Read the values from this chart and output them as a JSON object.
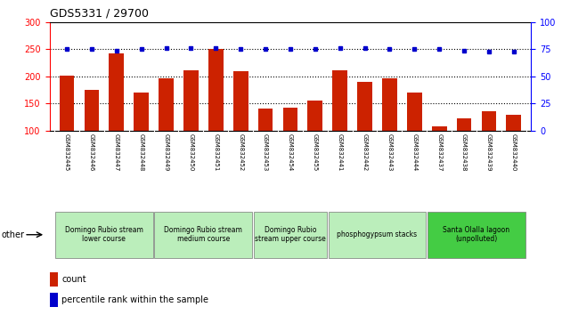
{
  "title": "GDS5331 / 29700",
  "samples": [
    "GSM832445",
    "GSM832446",
    "GSM832447",
    "GSM832448",
    "GSM832449",
    "GSM832450",
    "GSM832451",
    "GSM832452",
    "GSM832453",
    "GSM832454",
    "GSM832455",
    "GSM832441",
    "GSM832442",
    "GSM832443",
    "GSM832444",
    "GSM832437",
    "GSM832438",
    "GSM832439",
    "GSM832440"
  ],
  "counts": [
    201,
    175,
    243,
    171,
    196,
    211,
    251,
    210,
    140,
    142,
    156,
    211,
    190,
    196,
    171,
    108,
    122,
    136,
    129
  ],
  "percentiles": [
    75,
    75,
    74,
    75,
    76,
    76,
    76,
    75,
    75,
    75,
    75,
    76,
    76,
    75,
    75,
    75,
    74,
    73,
    73
  ],
  "groups": [
    {
      "label": "Domingo Rubio stream\nlower course",
      "start": 0,
      "end": 4,
      "color": "#bbeebb"
    },
    {
      "label": "Domingo Rubio stream\nmedium course",
      "start": 4,
      "end": 8,
      "color": "#bbeebb"
    },
    {
      "label": "Domingo Rubio\nstream upper course",
      "start": 8,
      "end": 11,
      "color": "#bbeebb"
    },
    {
      "label": "phosphogypsum stacks",
      "start": 11,
      "end": 15,
      "color": "#bbeebb"
    },
    {
      "label": "Santa Olalla lagoon\n(unpolluted)",
      "start": 15,
      "end": 19,
      "color": "#44cc44"
    }
  ],
  "bar_color": "#cc2200",
  "dot_color": "#0000cc",
  "ylim_left": [
    100,
    300
  ],
  "ylim_right": [
    0,
    100
  ],
  "yticks_left": [
    100,
    150,
    200,
    250,
    300
  ],
  "yticks_right": [
    0,
    25,
    50,
    75,
    100
  ],
  "grid_values": [
    150,
    200,
    250
  ],
  "title_fontsize": 9,
  "tick_fontsize": 7,
  "sample_fontsize": 5,
  "group_fontsize": 5.5,
  "legend_fontsize": 7
}
